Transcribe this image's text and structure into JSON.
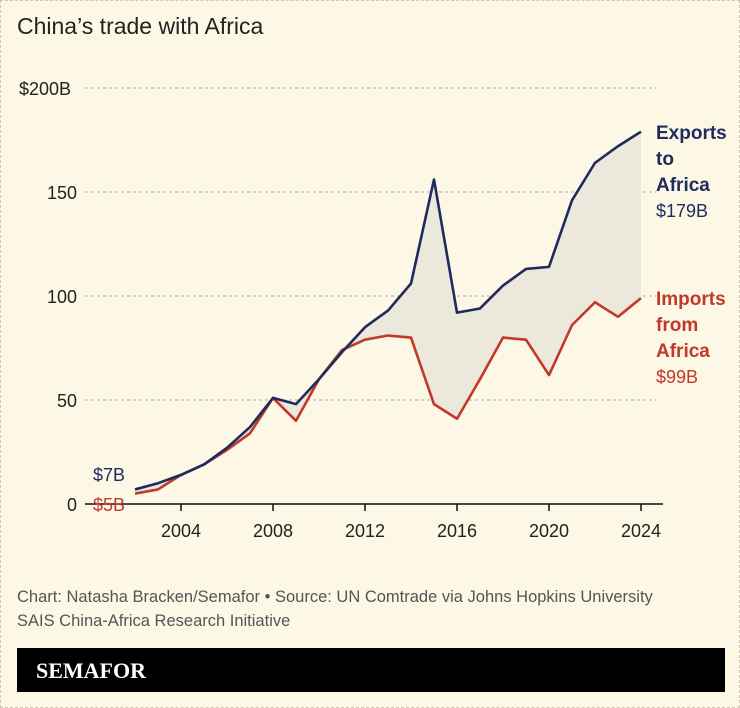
{
  "title": "China’s trade with Africa",
  "chart_data": {
    "type": "area",
    "x": [
      2002,
      2003,
      2004,
      2005,
      2006,
      2007,
      2008,
      2009,
      2010,
      2011,
      2012,
      2013,
      2014,
      2015,
      2016,
      2017,
      2018,
      2019,
      2020,
      2021,
      2022,
      2023,
      2024
    ],
    "series": [
      {
        "name": "Exports to Africa",
        "color": "#1f2a5e",
        "values": [
          7,
          10,
          14,
          19,
          27,
          37,
          51,
          48,
          60,
          73,
          85,
          93,
          106,
          156,
          92,
          94,
          105,
          113,
          114,
          146,
          164,
          172,
          179
        ],
        "end_label": "$179B",
        "start_label": "$7B"
      },
      {
        "name": "Imports from Africa",
        "color": "#c0392b",
        "values": [
          5,
          7,
          14,
          19,
          26,
          34,
          51,
          40,
          60,
          74,
          79,
          81,
          80,
          48,
          41,
          60,
          80,
          79,
          62,
          86,
          97,
          90,
          99
        ],
        "end_label": "$99B",
        "start_label": "$5B"
      }
    ],
    "fill_between": "#ece9dc",
    "ylim": [
      0,
      200
    ],
    "yticks": [
      0,
      50,
      100,
      150,
      200
    ],
    "ytick_labels": [
      "0",
      "50",
      "100",
      "150",
      "$200B"
    ],
    "xticks": [
      2004,
      2008,
      2012,
      2016,
      2020,
      2024
    ],
    "xtick_labels": [
      "2004",
      "2008",
      "2012",
      "2016",
      "2020",
      "2024"
    ],
    "grid": true
  },
  "footer": {
    "line1": "Chart: Natasha Bracken/Semafor • Source: UN Comtrade via Johns Hopkins University",
    "line2": "SAIS China-Africa Research Initiative"
  },
  "brand": "SEMAFOR"
}
